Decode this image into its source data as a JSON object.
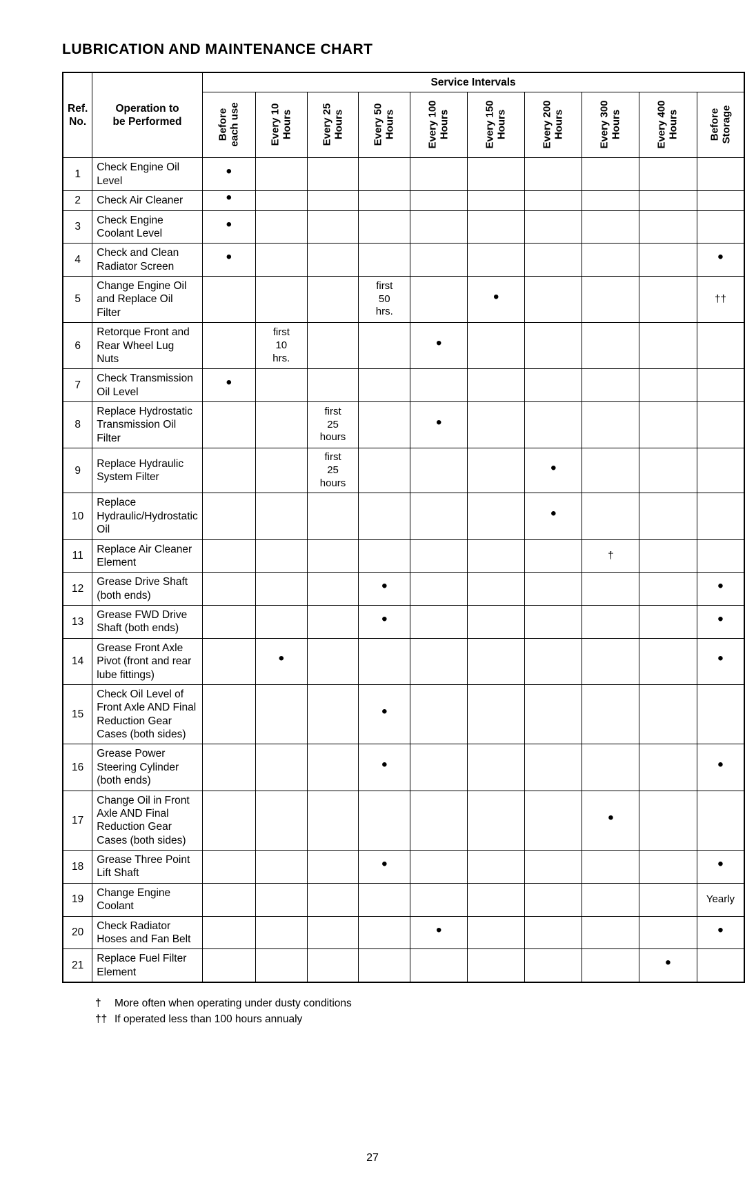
{
  "title": "LUBRICATION AND MAINTENANCE CHART",
  "serviceIntervalsLabel": "Service Intervals",
  "refHeader": "Ref.\nNo.",
  "opHeader": "Operation to\nbe Performed",
  "intervalHeaders": [
    "Before\neach use",
    "Every 10\nHours",
    "Every 25\nHours",
    "Every 50\nHours",
    "Every 100\nHours",
    "Every 150\nHours",
    "Every 200\nHours",
    "Every 300\nHours",
    "Every 400\nHours",
    "Before\nStorage"
  ],
  "dot": "•",
  "dagger": "†",
  "ddagger": "††",
  "rows": [
    {
      "ref": "1",
      "op": "Check Engine Oil Level",
      "cells": [
        "•",
        "",
        "",
        "",
        "",
        "",
        "",
        "",
        "",
        ""
      ]
    },
    {
      "ref": "2",
      "op": "Check Air Cleaner",
      "cells": [
        "•",
        "",
        "",
        "",
        "",
        "",
        "",
        "",
        "",
        ""
      ]
    },
    {
      "ref": "3",
      "op": "Check Engine Coolant Level",
      "cells": [
        "•",
        "",
        "",
        "",
        "",
        "",
        "",
        "",
        "",
        ""
      ]
    },
    {
      "ref": "4",
      "op": "Check and Clean Radiator Screen",
      "cells": [
        "•",
        "",
        "",
        "",
        "",
        "",
        "",
        "",
        "",
        "•"
      ]
    },
    {
      "ref": "5",
      "op": "Change Engine Oil and Replace Oil Filter",
      "cells": [
        "",
        "",
        "",
        "first\n50\nhrs.",
        "",
        "•",
        "",
        "",
        "",
        "††"
      ]
    },
    {
      "ref": "6",
      "op": "Retorque Front and Rear Wheel Lug Nuts",
      "cells": [
        "",
        "first\n10\nhrs.",
        "",
        "",
        "•",
        "",
        "",
        "",
        "",
        ""
      ]
    },
    {
      "ref": "7",
      "op": "Check Transmission Oil Level",
      "cells": [
        "•",
        "",
        "",
        "",
        "",
        "",
        "",
        "",
        "",
        ""
      ]
    },
    {
      "ref": "8",
      "op": "Replace Hydrostatic Transmission Oil Filter",
      "cells": [
        "",
        "",
        "first\n25\nhours",
        "",
        "•",
        "",
        "",
        "",
        "",
        ""
      ]
    },
    {
      "ref": "9",
      "op": "Replace Hydraulic System Filter",
      "cells": [
        "",
        "",
        "first\n25\nhours",
        "",
        "",
        "",
        "•",
        "",
        "",
        ""
      ]
    },
    {
      "ref": "10",
      "op": "Replace Hydraulic/Hydrostatic Oil",
      "cells": [
        "",
        "",
        "",
        "",
        "",
        "",
        "•",
        "",
        "",
        ""
      ]
    },
    {
      "ref": "11",
      "op": "Replace Air Cleaner Element",
      "cells": [
        "",
        "",
        "",
        "",
        "",
        "",
        "",
        "†",
        "",
        ""
      ]
    },
    {
      "ref": "12",
      "op": "Grease Drive Shaft (both ends)",
      "cells": [
        "",
        "",
        "",
        "•",
        "",
        "",
        "",
        "",
        "",
        "•"
      ]
    },
    {
      "ref": "13",
      "op": "Grease FWD Drive Shaft (both ends)",
      "cells": [
        "",
        "",
        "",
        "•",
        "",
        "",
        "",
        "",
        "",
        "•"
      ]
    },
    {
      "ref": "14",
      "op": "Grease Front Axle Pivot (front and rear lube fittings)",
      "cells": [
        "",
        "•",
        "",
        "",
        "",
        "",
        "",
        "",
        "",
        "•"
      ]
    },
    {
      "ref": "15",
      "op": "Check Oil Level of Front Axle AND Final Reduction Gear Cases (both sides)",
      "cells": [
        "",
        "",
        "",
        "•",
        "",
        "",
        "",
        "",
        "",
        ""
      ]
    },
    {
      "ref": "16",
      "op": "Grease Power Steering Cylinder (both ends)",
      "cells": [
        "",
        "",
        "",
        "•",
        "",
        "",
        "",
        "",
        "",
        "•"
      ]
    },
    {
      "ref": "17",
      "op": "Change Oil in Front Axle AND Final Reduction Gear Cases (both sides)",
      "cells": [
        "",
        "",
        "",
        "",
        "",
        "",
        "",
        "•",
        "",
        ""
      ]
    },
    {
      "ref": "18",
      "op": "Grease Three Point Lift Shaft",
      "cells": [
        "",
        "",
        "",
        "•",
        "",
        "",
        "",
        "",
        "",
        "•"
      ]
    },
    {
      "ref": "19",
      "op": "Change Engine Coolant",
      "cells": [
        "",
        "",
        "",
        "",
        "",
        "",
        "",
        "",
        "",
        "Yearly"
      ]
    },
    {
      "ref": "20",
      "op": "Check Radiator Hoses and Fan Belt",
      "cells": [
        "",
        "",
        "",
        "",
        "•",
        "",
        "",
        "",
        "",
        "•"
      ]
    },
    {
      "ref": "21",
      "op": "Replace Fuel Filter Element",
      "cells": [
        "",
        "",
        "",
        "",
        "",
        "",
        "",
        "",
        "•",
        ""
      ]
    }
  ],
  "footnotes": [
    {
      "sym": "†",
      "text": "More often when operating under dusty conditions"
    },
    {
      "sym": "††",
      "text": "If operated less than 100 hours annualy"
    }
  ],
  "pageNumber": "27"
}
